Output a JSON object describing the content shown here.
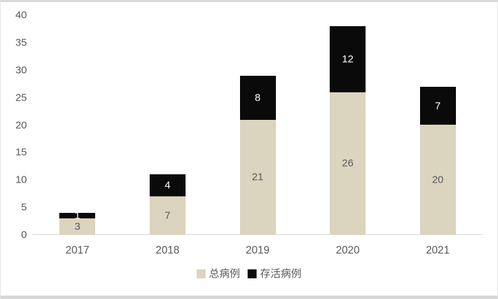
{
  "chart_data": {
    "type": "bar",
    "stacked": true,
    "title": "",
    "xlabel": "",
    "ylabel": "",
    "categories": [
      "2017",
      "2018",
      "2019",
      "2020",
      "2021"
    ],
    "series": [
      {
        "name": "总病例",
        "key": "total-cases",
        "color": "#dbd4be",
        "label_color": "#595959",
        "values": [
          3,
          7,
          21,
          26,
          20
        ]
      },
      {
        "name": "存活病例",
        "key": "surviving-cases",
        "color": "#0a0a0a",
        "label_color": "#ffffff",
        "values": [
          1,
          4,
          8,
          12,
          7
        ]
      }
    ],
    "stack_totals": [
      4,
      11,
      29,
      38,
      27
    ],
    "y_ticks": [
      0,
      5,
      10,
      15,
      20,
      25,
      30,
      35,
      40
    ],
    "ylim": [
      0,
      40
    ],
    "gridlines": false,
    "legend_position": "bottom-center",
    "axis_line_color": "#d6d6d6",
    "tick_label_color": "#595959"
  }
}
